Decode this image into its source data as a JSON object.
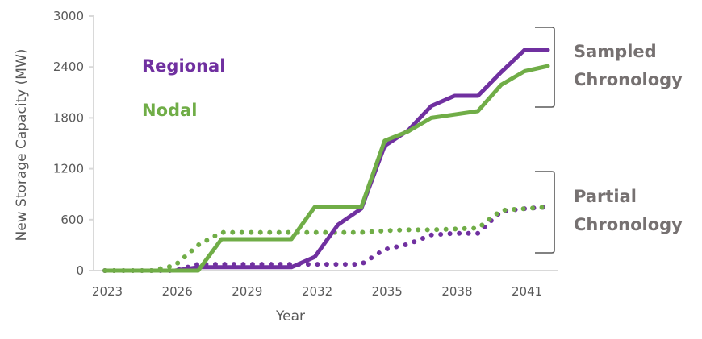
{
  "chart_data": {
    "type": "line",
    "title": "",
    "xlabel": "Year",
    "ylabel": "New Storage Capacity (MW)",
    "x": [
      2023,
      2024,
      2025,
      2026,
      2027,
      2028,
      2029,
      2030,
      2031,
      2032,
      2033,
      2034,
      2035,
      2036,
      2037,
      2038,
      2039,
      2040,
      2041,
      2042
    ],
    "xlim": [
      2023,
      2042
    ],
    "ylim": [
      0,
      3000
    ],
    "xticks": [
      "2023",
      "2026",
      "2029",
      "2032",
      "2035",
      "2038",
      "2041"
    ],
    "xtick_values": [
      2023,
      2026,
      2029,
      2032,
      2035,
      2038,
      2041
    ],
    "yticks": [
      "0",
      "600",
      "1200",
      "1800",
      "2400",
      "3000"
    ],
    "ytick_values": [
      0,
      600,
      1200,
      1800,
      2400,
      3000
    ],
    "grid": false,
    "legend": {
      "placement": "top-left",
      "entries": [
        {
          "label": "Regional",
          "color": "#7030A0"
        },
        {
          "label": "Nodal",
          "color": "#70AD47"
        }
      ]
    },
    "series": [
      {
        "name": "Regional - Sampled Chronology",
        "group": "Sampled Chronology",
        "color": "#7030A0",
        "style": "solid",
        "values": [
          0,
          0,
          0,
          0,
          40,
          40,
          40,
          40,
          40,
          160,
          540,
          730,
          1470,
          1650,
          1940,
          2060,
          2060,
          2340,
          2600,
          2600
        ]
      },
      {
        "name": "Nodal - Sampled Chronology",
        "group": "Sampled Chronology",
        "color": "#70AD47",
        "style": "solid",
        "values": [
          0,
          0,
          0,
          0,
          0,
          370,
          370,
          370,
          370,
          750,
          750,
          750,
          1530,
          1640,
          1800,
          1840,
          1880,
          2190,
          2350,
          2410
        ]
      },
      {
        "name": "Regional - Partial Chronology",
        "group": "Partial Chronology",
        "color": "#7030A0",
        "style": "dotted",
        "values": [
          0,
          0,
          0,
          0,
          75,
          75,
          75,
          75,
          75,
          75,
          75,
          75,
          250,
          310,
          420,
          440,
          440,
          700,
          730,
          750
        ]
      },
      {
        "name": "Nodal - Partial Chronology",
        "group": "Partial Chronology",
        "color": "#70AD47",
        "style": "dotted",
        "values": [
          0,
          0,
          0,
          60,
          300,
          450,
          450,
          450,
          450,
          450,
          450,
          450,
          470,
          480,
          480,
          490,
          500,
          710,
          730,
          750
        ]
      }
    ],
    "annotations": [
      {
        "label_lines": [
          "Sampled",
          "Chronology"
        ],
        "brackets_group": "Sampled Chronology",
        "placement": "right"
      },
      {
        "label_lines": [
          "Partial",
          "Chronology"
        ],
        "brackets_group": "Partial Chronology",
        "placement": "right"
      }
    ]
  },
  "colors": {
    "regional": "#7030A0",
    "nodal": "#70AD47",
    "axis": "#D9D9D9",
    "text": "#595959",
    "annotation": "#767171",
    "bracket": "#595959"
  }
}
